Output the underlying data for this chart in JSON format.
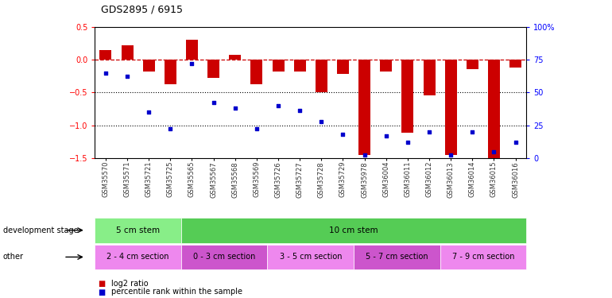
{
  "title": "GDS2895 / 6915",
  "samples": [
    "GSM35570",
    "GSM35571",
    "GSM35721",
    "GSM35725",
    "GSM35565",
    "GSM35567",
    "GSM35568",
    "GSM35569",
    "GSM35726",
    "GSM35727",
    "GSM35728",
    "GSM35729",
    "GSM35978",
    "GSM36004",
    "GSM36011",
    "GSM36012",
    "GSM36013",
    "GSM36014",
    "GSM36015",
    "GSM36016"
  ],
  "log2_ratio": [
    0.15,
    0.22,
    -0.18,
    -0.38,
    0.3,
    -0.28,
    0.07,
    -0.38,
    -0.18,
    -0.18,
    -0.5,
    -0.22,
    -1.45,
    -0.18,
    -1.12,
    -0.55,
    -1.45,
    -0.15,
    -1.55,
    -0.12
  ],
  "percentile": [
    65,
    62,
    35,
    22,
    72,
    42,
    38,
    22,
    40,
    36,
    28,
    18,
    2,
    17,
    12,
    20,
    2,
    20,
    5,
    12
  ],
  "ylim_left": [
    -1.5,
    0.5
  ],
  "ylim_right": [
    0,
    100
  ],
  "bar_color": "#cc0000",
  "dot_color": "#0000cc",
  "hline_color": "#cc0000",
  "dotline_vals": [
    -0.5,
    -1.0
  ],
  "dev_stage_groups": [
    {
      "label": "5 cm stem",
      "start": 0,
      "end": 3,
      "color": "#88ee88"
    },
    {
      "label": "10 cm stem",
      "start": 4,
      "end": 19,
      "color": "#55cc55"
    }
  ],
  "other_groups": [
    {
      "label": "2 - 4 cm section",
      "start": 0,
      "end": 3,
      "color": "#ee88ee"
    },
    {
      "label": "0 - 3 cm section",
      "start": 4,
      "end": 7,
      "color": "#cc55cc"
    },
    {
      "label": "3 - 5 cm section",
      "start": 8,
      "end": 11,
      "color": "#ee88ee"
    },
    {
      "label": "5 - 7 cm section",
      "start": 12,
      "end": 15,
      "color": "#cc55cc"
    },
    {
      "label": "7 - 9 cm section",
      "start": 16,
      "end": 19,
      "color": "#ee88ee"
    }
  ],
  "legend_items": [
    {
      "label": "log2 ratio",
      "color": "#cc0000"
    },
    {
      "label": "percentile rank within the sample",
      "color": "#0000cc"
    }
  ],
  "dev_stage_label": "development stage",
  "other_label": "other",
  "background_color": "#ffffff"
}
